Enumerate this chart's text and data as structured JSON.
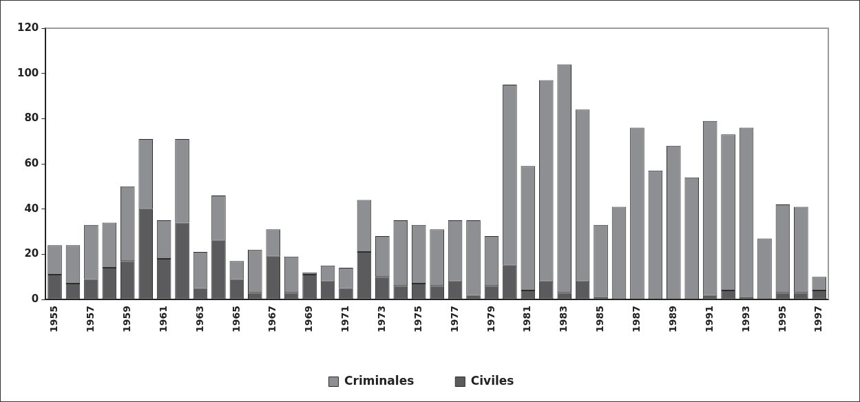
{
  "chart_data": {
    "type": "bar",
    "stacked": true,
    "categories": [
      "1955",
      null,
      "1957",
      null,
      "1959",
      null,
      "1961",
      null,
      "1963",
      null,
      "1965",
      null,
      "1967",
      null,
      "1969",
      null,
      "1971",
      null,
      "1973",
      null,
      "1975",
      null,
      "1977",
      null,
      "1979",
      null,
      "1981",
      null,
      "1983",
      null,
      "1985",
      null,
      "1987",
      null,
      "1989",
      null,
      "1991",
      null,
      "1993",
      null,
      "1995",
      null,
      "1997"
    ],
    "series": [
      {
        "name": "Civiles",
        "color": "#5b5b5d",
        "values": [
          11,
          7,
          9,
          14,
          17,
          40,
          18,
          34,
          5,
          26,
          9,
          3,
          19,
          3,
          11,
          8,
          5,
          21,
          10,
          6,
          7,
          6,
          8,
          2,
          6,
          15,
          4,
          8,
          3,
          8,
          1,
          0,
          0,
          0,
          0,
          0,
          2,
          4,
          1,
          0,
          3,
          3,
          4
        ]
      },
      {
        "name": "Criminales",
        "color": "#8e8f93",
        "values": [
          13,
          17,
          24,
          20,
          33,
          31,
          17,
          37,
          16,
          20,
          8,
          19,
          12,
          16,
          1,
          7,
          9,
          23,
          18,
          29,
          26,
          25,
          27,
          33,
          22,
          80,
          55,
          89,
          101,
          76,
          32,
          41,
          76,
          57,
          68,
          54,
          77,
          69,
          75,
          27,
          39,
          38,
          6
        ]
      }
    ],
    "ylim": [
      0,
      120
    ],
    "yticks": [
      0,
      20,
      40,
      60,
      80,
      100,
      120
    ],
    "grid": false,
    "legend": "bottom"
  }
}
